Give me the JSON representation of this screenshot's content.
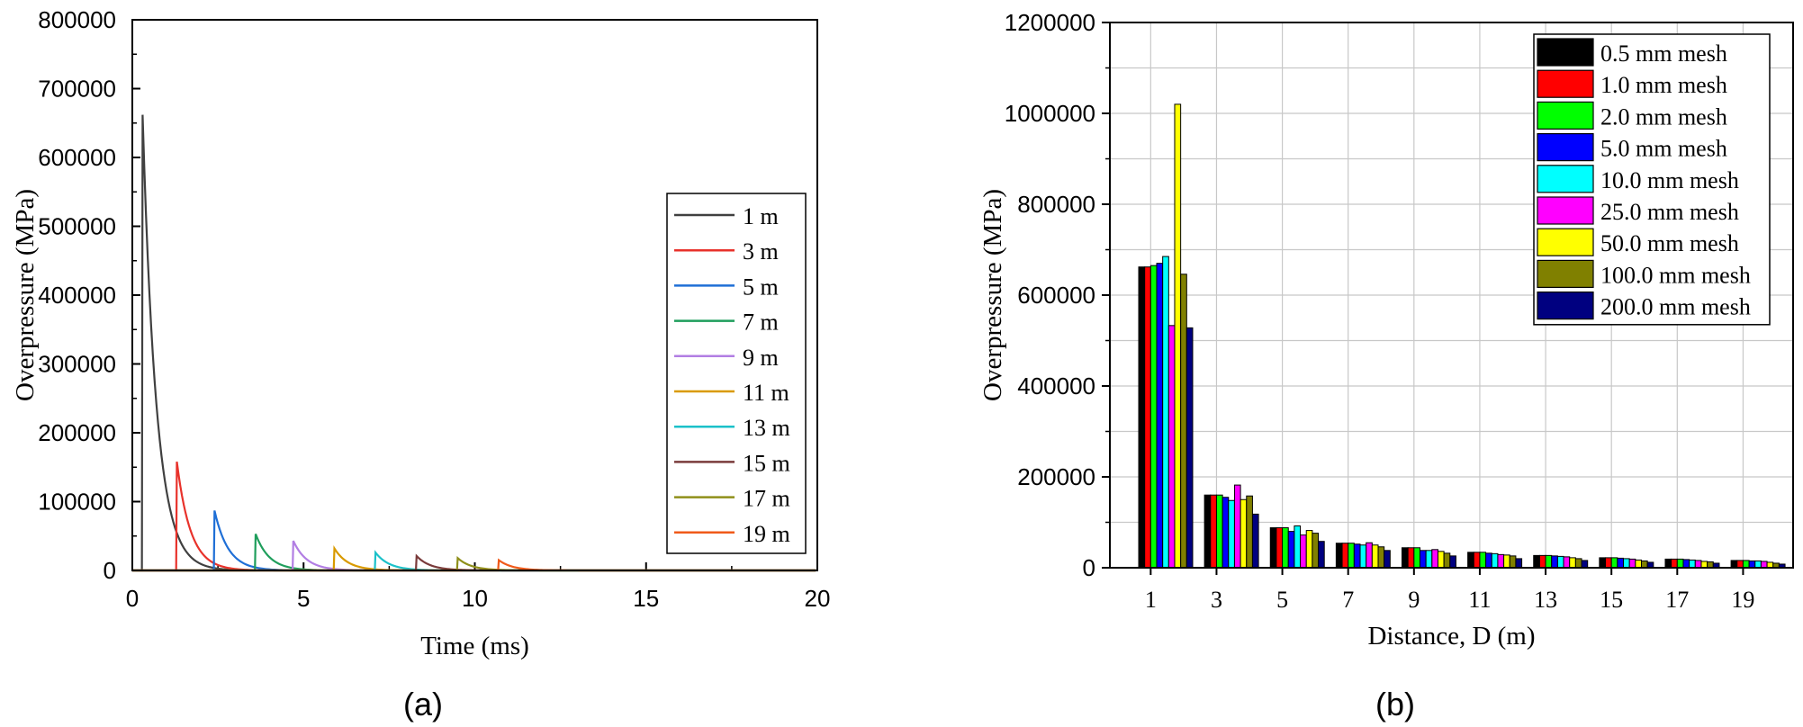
{
  "chart_data": [
    {
      "type": "line",
      "panel_label": "(a)",
      "title": "",
      "xlabel": "Time (ms)",
      "ylabel": "Overpressure (MPa)",
      "xlim": [
        0,
        20
      ],
      "ylim": [
        0,
        800000
      ],
      "xticks": [
        "0",
        "5",
        "10",
        "15",
        "20"
      ],
      "yticks": [
        "0",
        "100000",
        "200000",
        "300000",
        "400000",
        "500000",
        "600000",
        "700000",
        "800000"
      ],
      "grid": false,
      "legend_position": "right",
      "decay_tau_ms": 0.4,
      "series": [
        {
          "name": "1 m",
          "color": "#404040",
          "arrival_ms": 0.3,
          "peak": 662000
        },
        {
          "name": "3 m",
          "color": "#e8322b",
          "arrival_ms": 1.3,
          "peak": 158000
        },
        {
          "name": "5 m",
          "color": "#1f6fd6",
          "arrival_ms": 2.4,
          "peak": 87000
        },
        {
          "name": "7 m",
          "color": "#1f9e5c",
          "arrival_ms": 3.6,
          "peak": 53000
        },
        {
          "name": "9 m",
          "color": "#b27ee3",
          "arrival_ms": 4.7,
          "peak": 43000
        },
        {
          "name": "11 m",
          "color": "#d99a00",
          "arrival_ms": 5.9,
          "peak": 32000
        },
        {
          "name": "13 m",
          "color": "#1bc1c9",
          "arrival_ms": 7.1,
          "peak": 26000
        },
        {
          "name": "15 m",
          "color": "#7a3b3b",
          "arrival_ms": 8.3,
          "peak": 21000
        },
        {
          "name": "17 m",
          "color": "#8f8f1a",
          "arrival_ms": 9.5,
          "peak": 18000
        },
        {
          "name": "19 m",
          "color": "#f05a1a",
          "arrival_ms": 10.7,
          "peak": 15000
        }
      ]
    },
    {
      "type": "bar",
      "panel_label": "(b)",
      "title": "",
      "xlabel": "Distance, D (m)",
      "ylabel": "Overpressure (MPa)",
      "ylim": [
        0,
        1200000
      ],
      "yticks": [
        "0",
        "200000",
        "400000",
        "600000",
        "800000",
        "1000000",
        "1200000"
      ],
      "categories": [
        "1",
        "3",
        "5",
        "7",
        "9",
        "11",
        "13",
        "15",
        "17",
        "19"
      ],
      "grid": true,
      "legend_position": "top-right",
      "series": [
        {
          "name": "0.5 mm mesh",
          "color": "#000000",
          "values": [
            662000,
            160000,
            88000,
            54000,
            44000,
            34000,
            27000,
            22000,
            19000,
            16000
          ]
        },
        {
          "name": "1.0 mm mesh",
          "color": "#ff0000",
          "values": [
            662000,
            160000,
            88000,
            54000,
            44000,
            34000,
            27000,
            22000,
            19000,
            16000
          ]
        },
        {
          "name": "2.0 mm mesh",
          "color": "#00ff00",
          "values": [
            665000,
            160000,
            88000,
            54000,
            44000,
            34000,
            27000,
            22000,
            19000,
            16000
          ]
        },
        {
          "name": "5.0 mm mesh",
          "color": "#0000ff",
          "values": [
            670000,
            155000,
            80000,
            52000,
            38000,
            32000,
            26000,
            21000,
            18000,
            15000
          ]
        },
        {
          "name": "10.0 mm mesh",
          "color": "#00ffff",
          "values": [
            685000,
            148000,
            92000,
            50000,
            38000,
            31000,
            25000,
            20000,
            17000,
            15000
          ]
        },
        {
          "name": "25.0 mm mesh",
          "color": "#ff00ff",
          "values": [
            533000,
            182000,
            72000,
            55000,
            40000,
            29000,
            24000,
            19000,
            16000,
            14000
          ]
        },
        {
          "name": "50.0 mm mesh",
          "color": "#ffff00",
          "values": [
            1020000,
            150000,
            82000,
            50000,
            36000,
            28000,
            22000,
            17000,
            14000,
            12000
          ]
        },
        {
          "name": "100.0 mm mesh",
          "color": "#808000",
          "values": [
            646000,
            158000,
            76000,
            46000,
            32000,
            26000,
            20000,
            15000,
            13000,
            10000
          ]
        },
        {
          "name": "200.0 mm mesh",
          "color": "#000080",
          "values": [
            528000,
            118000,
            58000,
            38000,
            26000,
            20000,
            16000,
            12000,
            10000,
            8000
          ]
        }
      ]
    }
  ]
}
